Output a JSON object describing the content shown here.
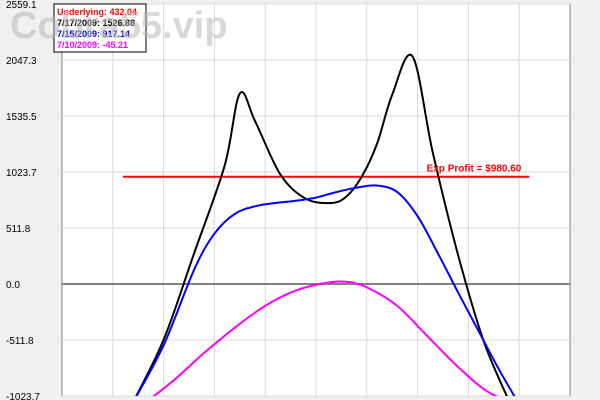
{
  "chart_data": {
    "type": "line",
    "title": "",
    "xlabel": "",
    "ylabel": "",
    "ylim": [
      -1023.7,
      2559.1
    ],
    "yticks": [
      "2559.1",
      "2047.3",
      "1535.5",
      "1023.7",
      "511.8",
      "0.0",
      "-511.8",
      "-1023.7"
    ],
    "ytick_values": [
      2559.1,
      2047.3,
      1535.5,
      1023.7,
      511.8,
      0.0,
      -511.8,
      -1023.7
    ],
    "xlim": [
      0,
      100
    ],
    "grid": true,
    "legend_position": "top-left",
    "legend": [
      {
        "label": "Underlying: 432.04",
        "color": "#ff0000"
      },
      {
        "label": "7/17/2009: 1526.88",
        "color": "#000000"
      },
      {
        "label": "7/15/2009: 917.14",
        "color": "#0000ff"
      },
      {
        "label": "7/10/2009: -45.21",
        "color": "#ff00ff"
      }
    ],
    "annotations": [
      {
        "text": "Exp Profit = $980.60",
        "y": 980.6,
        "color": "#ff0000"
      }
    ],
    "series": [
      {
        "color": "#000000",
        "x": [
          14,
          20,
          26,
          32,
          35,
          38,
          43,
          48,
          53,
          56,
          59,
          62,
          65,
          69,
          73,
          78,
          83,
          88
        ],
        "y": [
          -1080,
          -510,
          280,
          1080,
          1740,
          1490,
          1000,
          780,
          740,
          800,
          980,
          1280,
          1730,
          2080,
          1200,
          260,
          -520,
          -1070
        ]
      },
      {
        "color": "#0000ff",
        "x": [
          14,
          20,
          26,
          30,
          34,
          38,
          42,
          46,
          50,
          54,
          58,
          62,
          66,
          70,
          74,
          78,
          82,
          86,
          90
        ],
        "y": [
          -1080,
          -560,
          130,
          460,
          640,
          710,
          740,
          760,
          790,
          840,
          880,
          900,
          840,
          620,
          280,
          -80,
          -430,
          -780,
          -1100
        ]
      },
      {
        "color": "#ff00ff",
        "x": [
          16,
          22,
          28,
          34,
          40,
          46,
          52,
          56,
          60,
          66,
          72,
          78,
          84,
          90
        ],
        "y": [
          -1100,
          -880,
          -630,
          -400,
          -200,
          -60,
          10,
          20,
          -30,
          -200,
          -480,
          -760,
          -990,
          -1100
        ]
      }
    ],
    "horizontal_lines": [
      {
        "y": 980.6,
        "x_start": 12,
        "x_end": 92,
        "color": "#ff0000"
      },
      {
        "y": 0.0,
        "x_start": 0,
        "x_end": 100,
        "color": "#808080"
      }
    ]
  },
  "watermark": "Cobra55.vip"
}
